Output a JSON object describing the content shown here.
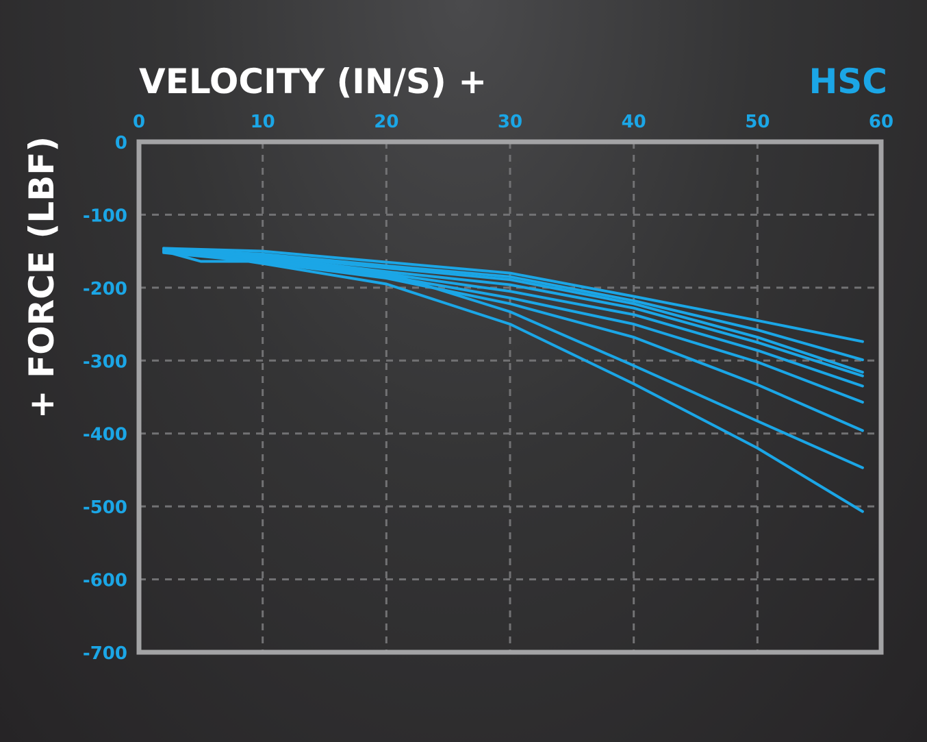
{
  "chart_data": {
    "type": "line",
    "title": "HSC",
    "xlabel": "VELOCITY (IN/S) +",
    "ylabel": "+ FORCE (LBF)",
    "xlim": [
      0,
      60
    ],
    "ylim": [
      -700,
      0
    ],
    "x_axis_position": "top",
    "grid": true,
    "x_ticks": [
      "0",
      "10",
      "20",
      "30",
      "40",
      "50",
      "60"
    ],
    "y_ticks": [
      "0",
      "-100",
      "-200",
      "-300",
      "-400",
      "-500",
      "-600",
      "-700"
    ],
    "legend": "none",
    "series": [
      {
        "x": [
          2,
          10,
          20,
          30,
          40,
          50,
          58.5
        ],
        "y": [
          -146,
          -150,
          -165,
          -180,
          -212,
          -245,
          -274
        ]
      },
      {
        "x": [
          2,
          10,
          20,
          30,
          40,
          50,
          58.5
        ],
        "y": [
          -148,
          -154,
          -170,
          -185,
          -218,
          -258,
          -299
        ]
      },
      {
        "x": [
          2,
          10,
          20,
          30,
          40,
          50,
          58.5
        ],
        "y": [
          -147,
          -156,
          -173,
          -189,
          -222,
          -268,
          -316
        ]
      },
      {
        "x": [
          2,
          10,
          20,
          30,
          40,
          50,
          58.5
        ],
        "y": [
          -149,
          -158,
          -178,
          -196,
          -228,
          -275,
          -321
        ]
      },
      {
        "x": [
          2,
          10,
          20,
          30,
          40,
          50,
          58.5
        ],
        "y": [
          -150,
          -160,
          -181,
          -205,
          -237,
          -286,
          -335
        ]
      },
      {
        "x": [
          2,
          10,
          20,
          30,
          40,
          50,
          58.5
        ],
        "y": [
          -151,
          -163,
          -184,
          -214,
          -250,
          -302,
          -357
        ]
      },
      {
        "x": [
          2,
          10,
          20,
          30,
          40,
          50,
          58.5
        ],
        "y": [
          -152,
          -165,
          -187,
          -222,
          -268,
          -333,
          -396
        ]
      },
      {
        "x": [
          2,
          5,
          10,
          20,
          30,
          40,
          50,
          58.5
        ],
        "y": [
          -150,
          -164,
          -164,
          -180,
          -233,
          -307,
          -383,
          -447
        ]
      },
      {
        "x": [
          2,
          10,
          20,
          30,
          40,
          50,
          58.5
        ],
        "y": [
          -146,
          -167,
          -195,
          -250,
          -332,
          -420,
          -507
        ]
      }
    ],
    "colors": {
      "series": "#1ba6e6",
      "ticks": "#1ba6e6",
      "title": "#1ba6e6",
      "axis_labels": "#ffffff",
      "frame": "#a3a3a5",
      "grid": "#727274"
    }
  }
}
